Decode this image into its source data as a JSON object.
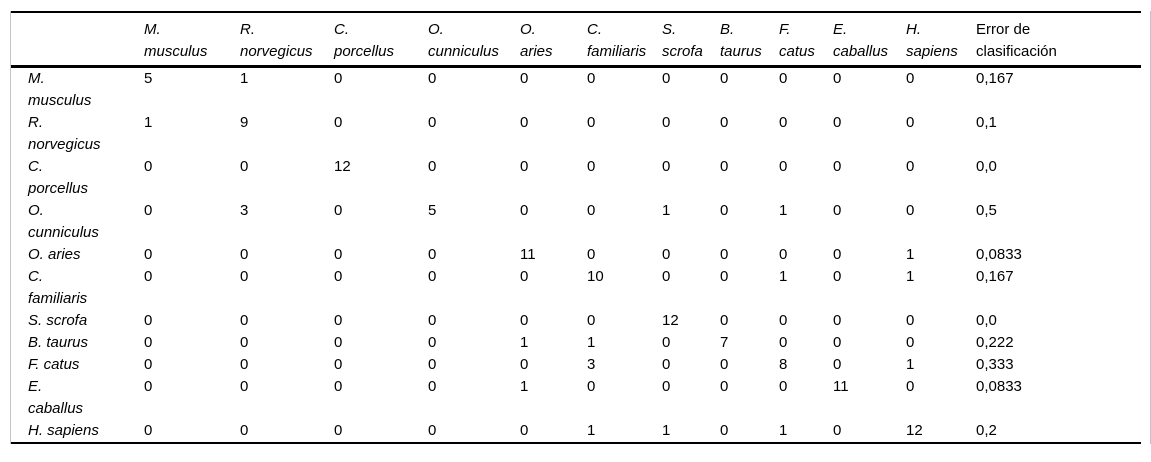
{
  "colors": {
    "background": "#ffffff",
    "text": "#000000",
    "rule": "#000000",
    "side_border": "#c4c4c4"
  },
  "table": {
    "corner_label": "",
    "column_headers": [
      "M.\nmusculus",
      "R.\nnorvegicus",
      "C.\nporcellus",
      "O.\ncunniculus",
      "O.\naries",
      "C.\nfamiliaris",
      "S.\nscrofa",
      "B.\ntaurus",
      "F.\ncatus",
      "E.\ncaballus",
      "H.\nsapiens",
      "Error de\nclasificación"
    ],
    "rows": [
      {
        "label": "M.\nmusculus",
        "values": [
          5,
          1,
          0,
          0,
          0,
          0,
          0,
          0,
          0,
          0,
          0
        ],
        "error": "0,167"
      },
      {
        "label": "R.\nnorvegicus",
        "values": [
          1,
          9,
          0,
          0,
          0,
          0,
          0,
          0,
          0,
          0,
          0
        ],
        "error": "0,1"
      },
      {
        "label": "C.\nporcellus",
        "values": [
          0,
          0,
          12,
          0,
          0,
          0,
          0,
          0,
          0,
          0,
          0
        ],
        "error": "0,0"
      },
      {
        "label": "O.\ncunniculus",
        "values": [
          0,
          3,
          0,
          5,
          0,
          0,
          1,
          0,
          1,
          0,
          0
        ],
        "error": "0,5"
      },
      {
        "label": "O. aries",
        "values": [
          0,
          0,
          0,
          0,
          11,
          0,
          0,
          0,
          0,
          0,
          1
        ],
        "error": "0,0833"
      },
      {
        "label": "C.\nfamiliaris",
        "values": [
          0,
          0,
          0,
          0,
          0,
          10,
          0,
          0,
          1,
          0,
          1
        ],
        "error": "0,167"
      },
      {
        "label": "S. scrofa",
        "values": [
          0,
          0,
          0,
          0,
          0,
          0,
          12,
          0,
          0,
          0,
          0
        ],
        "error": "0,0"
      },
      {
        "label": "B. taurus",
        "values": [
          0,
          0,
          0,
          0,
          1,
          1,
          0,
          7,
          0,
          0,
          0
        ],
        "error": "0,222"
      },
      {
        "label": "F. catus",
        "values": [
          0,
          0,
          0,
          0,
          0,
          3,
          0,
          0,
          8,
          0,
          1
        ],
        "error": "0,333"
      },
      {
        "label": "E.\ncaballus",
        "values": [
          0,
          0,
          0,
          0,
          1,
          0,
          0,
          0,
          0,
          11,
          0
        ],
        "error": "0,0833"
      },
      {
        "label": "H. sapiens",
        "values": [
          0,
          0,
          0,
          0,
          0,
          1,
          1,
          0,
          1,
          0,
          12
        ],
        "error": "0,2"
      }
    ]
  }
}
